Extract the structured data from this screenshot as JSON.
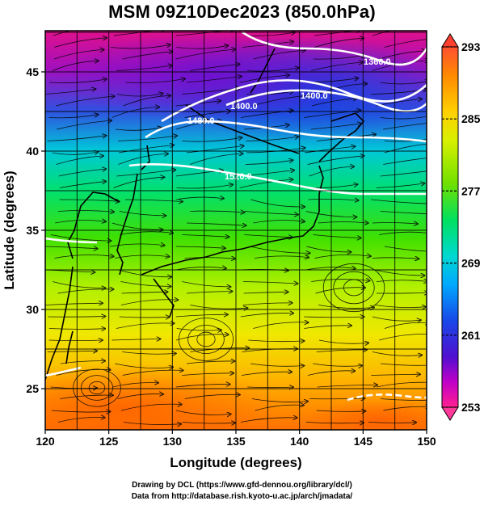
{
  "title": "MSM 09Z10Dec2023 (850.0hPa)",
  "axes": {
    "xlabel": "Longitude (degrees)",
    "ylabel": "Latitude  (degrees)",
    "x_ticks": [
      "120",
      "125",
      "130",
      "135",
      "140",
      "145",
      "150"
    ],
    "y_ticks": [
      "25",
      "30",
      "35",
      "40",
      "45"
    ],
    "xlim": [
      120,
      150
    ],
    "ylim": [
      22.4,
      47.6
    ]
  },
  "colorbar": {
    "labels": [
      "293",
      "285",
      "277",
      "269",
      "261",
      "253"
    ],
    "range": [
      253,
      293
    ],
    "colors": [
      "#ff2a55",
      "#8a00d0",
      "#2222dd",
      "#00c8ff",
      "#00e070",
      "#40e000",
      "#d0f000",
      "#ffe000",
      "#ffa000",
      "#ff5a00"
    ]
  },
  "contours": [
    {
      "label": "1360.0"
    },
    {
      "label": "1400.0"
    },
    {
      "label": "1400.0"
    },
    {
      "label": "1480.0"
    },
    {
      "label": "1520.0"
    }
  ],
  "credits": {
    "line1": "Drawing by DCL (https://www.gfd-dennou.org/library/dcl/)",
    "line2": "Data from http://database.rish.kyoto-u.ac.jp/arch/jmadata/"
  },
  "chart_data": {
    "type": "heatmap",
    "title": "MSM 09Z10Dec2023 (850.0hPa)",
    "xlabel": "Longitude (degrees)",
    "ylabel": "Latitude  (degrees)",
    "xlim": [
      120,
      150
    ],
    "ylim": [
      22.4,
      47.6
    ],
    "color_range": [
      253,
      293
    ],
    "colorbar_ticks": [
      293,
      285,
      277,
      269,
      261,
      253
    ],
    "contour_labels": [
      "1360.0",
      "1400.0",
      "1400.0",
      "1480.0",
      "1520.0"
    ],
    "grid": true
  }
}
